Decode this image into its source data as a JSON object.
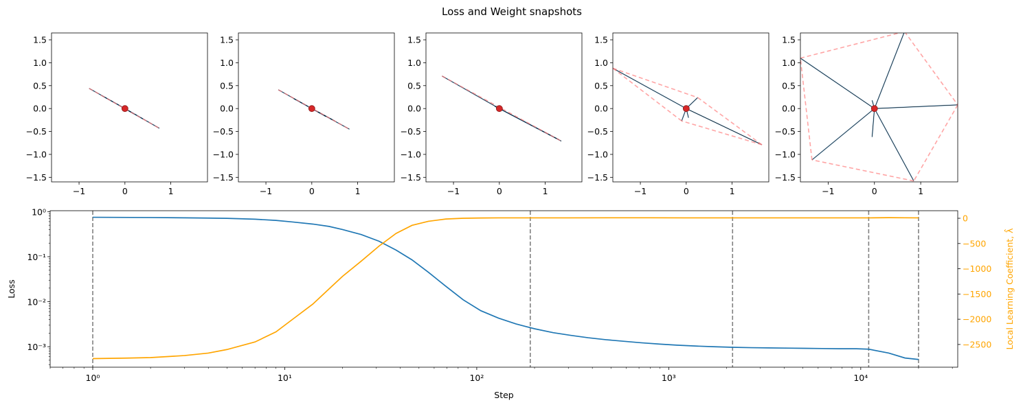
{
  "figure_title": "Loss and Weight snapshots",
  "chart_data": [
    {
      "type": "scatter",
      "name": "snapshot-1",
      "xlim": [
        -1.6,
        1.8
      ],
      "ylim": [
        -1.6,
        1.65
      ],
      "xticks": [
        -1,
        0,
        1
      ],
      "xtick_labels": [
        "−1",
        "0",
        "1"
      ],
      "yticks": [
        -1.5,
        -1.0,
        -0.5,
        0.0,
        0.5,
        1.0,
        1.5
      ],
      "ytick_labels": [
        "−1.5",
        "−1.0",
        "−0.5",
        "0.0",
        "0.5",
        "1.0",
        "1.5"
      ],
      "points": [
        [
          -0.78,
          0.44
        ],
        [
          0.75,
          -0.43
        ],
        [
          -0.5,
          0.28
        ],
        [
          0.4,
          -0.23
        ],
        [
          0.2,
          -0.12
        ]
      ],
      "red_segments": [
        [
          [
            -0.78,
            0.44
          ],
          [
            0.75,
            -0.43
          ]
        ]
      ],
      "center": [
        0,
        0
      ]
    },
    {
      "type": "scatter",
      "name": "snapshot-2",
      "xlim": [
        -1.6,
        1.8
      ],
      "ylim": [
        -1.6,
        1.65
      ],
      "xticks": [
        -1,
        0,
        1
      ],
      "xtick_labels": [
        "−1",
        "0",
        "1"
      ],
      "yticks": [
        -1.5,
        -1.0,
        -0.5,
        0.0,
        0.5,
        1.0,
        1.5
      ],
      "ytick_labels": [
        "−1.5",
        "−1.0",
        "−0.5",
        "0.0",
        "0.5",
        "1.0",
        "1.5"
      ],
      "points": [
        [
          -0.73,
          0.41
        ],
        [
          0.82,
          -0.45
        ],
        [
          -0.4,
          0.22
        ],
        [
          0.5,
          -0.27
        ],
        [
          0.3,
          -0.17
        ]
      ],
      "red_segments": [
        [
          [
            -0.73,
            0.41
          ],
          [
            0.82,
            -0.45
          ]
        ]
      ],
      "center": [
        0,
        0
      ]
    },
    {
      "type": "scatter",
      "name": "snapshot-3",
      "xlim": [
        -1.6,
        1.8
      ],
      "ylim": [
        -1.6,
        1.65
      ],
      "xticks": [
        -1,
        0,
        1
      ],
      "xtick_labels": [
        "−1",
        "0",
        "1"
      ],
      "yticks": [
        -1.5,
        -1.0,
        -0.5,
        0.0,
        0.5,
        1.0,
        1.5
      ],
      "ytick_labels": [
        "−1.5",
        "−1.0",
        "−0.5",
        "0.0",
        "0.5",
        "1.0",
        "1.5"
      ],
      "points": [
        [
          -1.25,
          0.71
        ],
        [
          1.35,
          -0.71
        ],
        [
          0.08,
          -0.02
        ],
        [
          -0.1,
          0.05
        ],
        [
          1.3,
          -0.68
        ]
      ],
      "red_segments": [
        [
          [
            -1.25,
            0.71
          ],
          [
            1.35,
            -0.71
          ]
        ]
      ],
      "center": [
        0,
        0
      ]
    },
    {
      "type": "scatter",
      "name": "snapshot-4",
      "xlim": [
        -1.6,
        1.8
      ],
      "ylim": [
        -1.6,
        1.65
      ],
      "xticks": [
        -1,
        0,
        1
      ],
      "xtick_labels": [
        "−1",
        "0",
        "1"
      ],
      "yticks": [
        -1.5,
        -1.0,
        -0.5,
        0.0,
        0.5,
        1.0,
        1.5
      ],
      "ytick_labels": [
        "−1.5",
        "−1.0",
        "−0.5",
        "0.0",
        "0.5",
        "1.0",
        "1.5"
      ],
      "points": [
        [
          -1.6,
          0.88
        ],
        [
          1.65,
          -0.79
        ],
        [
          0.25,
          0.24
        ],
        [
          -0.1,
          -0.27
        ],
        [
          0.05,
          -0.2
        ]
      ],
      "red_segments": [
        [
          [
            -1.6,
            0.88
          ],
          [
            0.25,
            0.24
          ]
        ],
        [
          [
            0.25,
            0.24
          ],
          [
            1.65,
            -0.79
          ]
        ],
        [
          [
            1.65,
            -0.79
          ],
          [
            -0.1,
            -0.27
          ]
        ],
        [
          [
            -0.1,
            -0.27
          ],
          [
            -1.6,
            0.88
          ]
        ]
      ],
      "center": [
        0,
        0
      ]
    },
    {
      "type": "scatter",
      "name": "snapshot-5",
      "xlim": [
        -1.6,
        1.8
      ],
      "ylim": [
        -1.6,
        1.65
      ],
      "xticks": [
        -1,
        0,
        1
      ],
      "xtick_labels": [
        "−1",
        "0",
        "1"
      ],
      "yticks": [
        -1.5,
        -1.0,
        -0.5,
        0.0,
        0.5,
        1.0,
        1.5
      ],
      "ytick_labels": [
        "−1.5",
        "−1.0",
        "−0.5",
        "0.0",
        "0.5",
        "1.0",
        "1.5"
      ],
      "points": [
        [
          -1.6,
          1.1
        ],
        [
          0.65,
          1.68
        ],
        [
          1.8,
          0.08
        ],
        [
          0.85,
          -1.58
        ],
        [
          -1.35,
          -1.12
        ],
        [
          -0.05,
          0.18
        ],
        [
          -0.05,
          -0.62
        ]
      ],
      "red_segments": [
        [
          [
            -1.6,
            1.1
          ],
          [
            0.65,
            1.68
          ]
        ],
        [
          [
            0.65,
            1.68
          ],
          [
            1.8,
            0.08
          ]
        ],
        [
          [
            1.8,
            0.08
          ],
          [
            0.85,
            -1.58
          ]
        ],
        [
          [
            0.85,
            -1.58
          ],
          [
            -1.35,
            -1.12
          ]
        ],
        [
          [
            -1.35,
            -1.12
          ],
          [
            -1.6,
            1.1
          ]
        ]
      ],
      "center": [
        0,
        0
      ]
    },
    {
      "type": "line",
      "name": "loss-and-llc",
      "xlabel": "Step",
      "ylabel": "Loss",
      "ylabel_right": "Local Learning Coefficient, λ̂",
      "xscale": "log",
      "yscale_left": "log",
      "xlim": [
        0.6,
        32000
      ],
      "ylim_left": [
        0.00035,
        1.05
      ],
      "ylim_right": [
        -2950,
        150
      ],
      "xtick_labels": [
        "10⁰",
        "10¹",
        "10²",
        "10³",
        "10⁴"
      ],
      "xtick_values": [
        1,
        10,
        100,
        1000,
        10000
      ],
      "ytick_labels_left": [
        "10⁻³",
        "10⁻²",
        "10⁻¹",
        "10⁰"
      ],
      "ytick_values_left": [
        0.001,
        0.01,
        0.1,
        1
      ],
      "ytick_values_right": [
        0,
        -500,
        -1000,
        -1500,
        -2000,
        -2500
      ],
      "ytick_labels_right": [
        "0",
        "−500",
        "−1000",
        "−1500",
        "−2000",
        "−2500"
      ],
      "snapshot_steps": [
        1,
        190,
        2150,
        11000,
        20000
      ],
      "series": [
        {
          "name": "Loss",
          "color": "#1f77b4",
          "axis": "left",
          "x": [
            1,
            2,
            3,
            4,
            5,
            7,
            9,
            11,
            14,
            17,
            20,
            25,
            31,
            38,
            46,
            56,
            69,
            85,
            105,
            130,
            160,
            200,
            250,
            310,
            380,
            470,
            580,
            720,
            900,
            1100,
            1400,
            1700,
            2150,
            2700,
            3300,
            4100,
            5100,
            6300,
            7800,
            9500,
            11000,
            14000,
            17000,
            20000
          ],
          "values": [
            0.75,
            0.74,
            0.73,
            0.72,
            0.71,
            0.68,
            0.64,
            0.59,
            0.53,
            0.47,
            0.4,
            0.31,
            0.22,
            0.14,
            0.085,
            0.045,
            0.022,
            0.011,
            0.0063,
            0.0043,
            0.0032,
            0.0025,
            0.00205,
            0.00178,
            0.00158,
            0.00143,
            0.00132,
            0.00122,
            0.00114,
            0.00108,
            0.00103,
            0.001,
            0.00097,
            0.00095,
            0.00094,
            0.00093,
            0.00092,
            0.00091,
            0.0009,
            0.0009,
            0.00088,
            0.00072,
            0.00056,
            0.00052
          ]
        },
        {
          "name": "LLC",
          "color": "#ffa500",
          "axis": "right",
          "x": [
            1,
            1.5,
            2,
            3,
            4,
            5,
            7,
            9,
            11,
            14,
            17,
            20,
            25,
            31,
            38,
            46,
            56,
            69,
            85,
            105,
            130,
            160,
            200,
            300,
            500,
            800,
            1200,
            2000,
            3000,
            5000,
            8000,
            11000,
            14000,
            17000,
            20000
          ],
          "values": [
            -2780,
            -2770,
            -2760,
            -2720,
            -2670,
            -2600,
            -2450,
            -2250,
            -2000,
            -1700,
            -1400,
            -1150,
            -850,
            -550,
            -300,
            -140,
            -60,
            -15,
            0,
            5,
            8,
            8,
            8,
            8,
            10,
            10,
            8,
            8,
            8,
            8,
            8,
            8,
            12,
            10,
            8
          ]
        }
      ]
    }
  ]
}
